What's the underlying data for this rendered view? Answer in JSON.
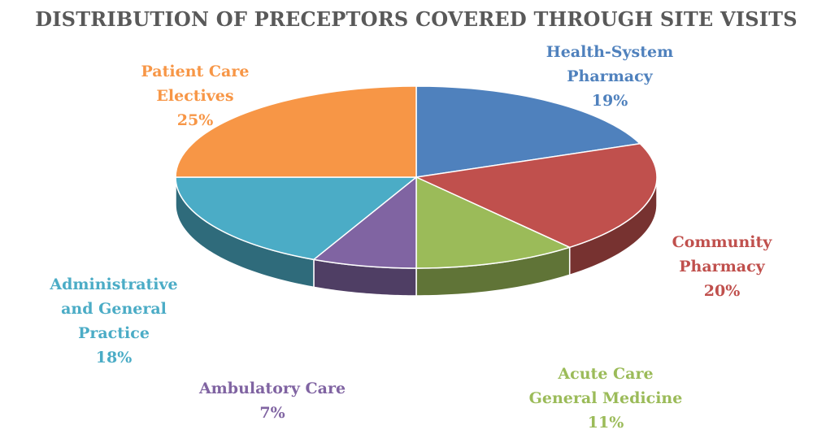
{
  "chart_data": {
    "type": "pie",
    "title": "DISTRIBUTION OF PRECEPTORS COVERED THROUGH SITE VISITS",
    "slices": [
      {
        "label_lines": [
          "Health-System",
          "Pharmacy"
        ],
        "value": 19,
        "percent_label": "19%",
        "color": "#4F81BD"
      },
      {
        "label_lines": [
          "Community",
          "Pharmacy"
        ],
        "value": 20,
        "percent_label": "20%",
        "color": "#C0504D"
      },
      {
        "label_lines": [
          "Acute Care",
          "General Medicine"
        ],
        "value": 11,
        "percent_label": "11%",
        "color": "#9BBB59"
      },
      {
        "label_lines": [
          "Ambulatory Care"
        ],
        "value": 7,
        "percent_label": "7%",
        "color": "#8064A2"
      },
      {
        "label_lines": [
          "Administrative",
          "and General",
          "Practice"
        ],
        "value": 18,
        "percent_label": "18%",
        "color": "#4BACC6"
      },
      {
        "label_lines": [
          "Patient Care",
          "Electives"
        ],
        "value": 25,
        "percent_label": "25%",
        "color": "#F79646"
      }
    ],
    "style": "3d-pie",
    "legend": "none"
  }
}
